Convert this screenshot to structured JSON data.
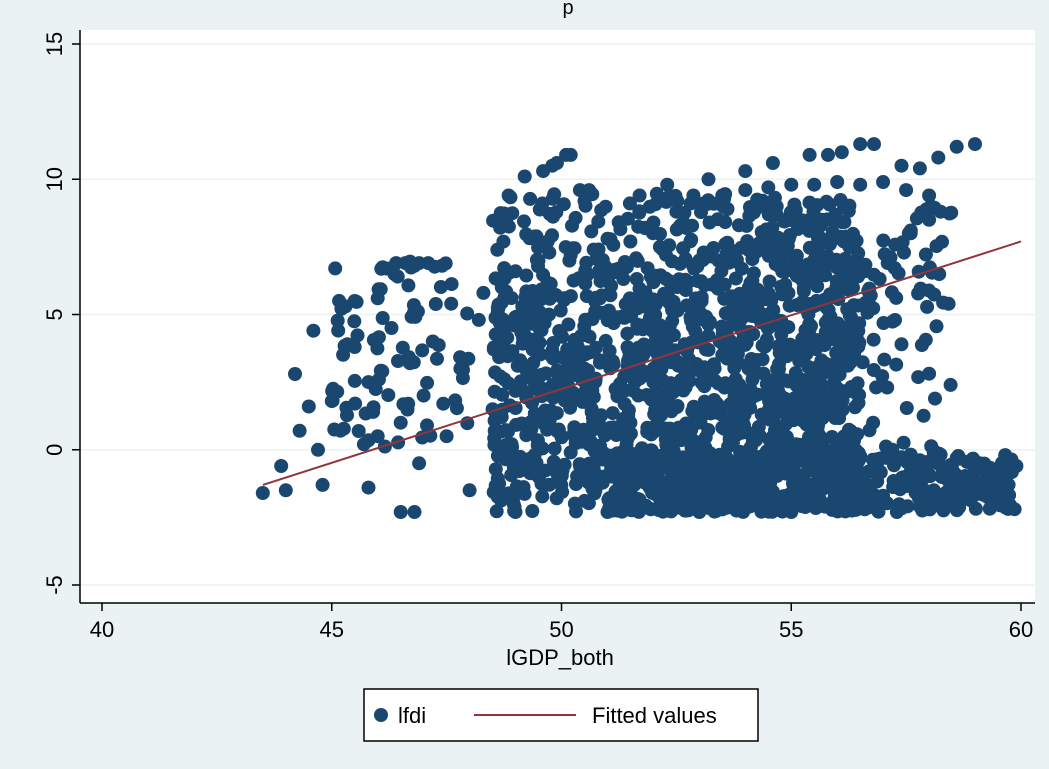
{
  "chart_data": {
    "type": "scatter",
    "title": "",
    "top_label": "p",
    "xlabel": "lGDP_both",
    "ylabel": "",
    "xlim": [
      40,
      60
    ],
    "ylim": [
      -5,
      15
    ],
    "x_ticks": [
      40,
      45,
      50,
      55,
      60
    ],
    "y_ticks": [
      -5,
      0,
      5,
      10,
      15
    ],
    "x_tick_labels": [
      "40",
      "45",
      "50",
      "55",
      "60"
    ],
    "y_tick_labels": [
      "-5",
      "0",
      "5",
      "10",
      "15"
    ],
    "grid": "horizontal",
    "legend_position": "bottom",
    "colors": {
      "points": "#1a476f",
      "fit": "#90353b",
      "plot_bg": "#ffffff",
      "outer_bg": "#eaf2f3",
      "grid": "#eaf2f3"
    },
    "series": [
      {
        "name": "lfdi",
        "kind": "scatter",
        "regions": [
          {
            "x": [
              48.5,
              56.5
            ],
            "y": [
              -2.3,
              9.5
            ],
            "density": "very dense"
          },
          {
            "x": [
              49.0,
              58.5
            ],
            "y": [
              -2.3,
              11.3
            ],
            "density": "upper band"
          },
          {
            "x": [
              51.0,
              59.9
            ],
            "y": [
              -2.3,
              -0.1
            ],
            "density": "lower band"
          },
          {
            "x": [
              45.0,
              48.0
            ],
            "y": [
              0.0,
              7.0
            ],
            "density": "sparse"
          }
        ],
        "points": [
          [
            43.5,
            -1.6
          ],
          [
            43.9,
            -0.6
          ],
          [
            44.0,
            -1.5
          ],
          [
            44.2,
            2.8
          ],
          [
            44.3,
            0.7
          ],
          [
            44.5,
            1.6
          ],
          [
            44.6,
            4.4
          ],
          [
            44.7,
            0.0
          ],
          [
            44.8,
            -1.3
          ],
          [
            45.0,
            1.8
          ],
          [
            45.3,
            5.3
          ],
          [
            45.5,
            3.8
          ],
          [
            45.5,
            5.5
          ],
          [
            45.7,
            0.2
          ],
          [
            45.8,
            -1.4
          ],
          [
            46.0,
            5.6
          ],
          [
            46.2,
            6.7
          ],
          [
            46.4,
            6.9
          ],
          [
            46.6,
            6.9
          ],
          [
            46.8,
            6.8
          ],
          [
            46.9,
            6.9
          ],
          [
            47.1,
            6.9
          ],
          [
            47.4,
            6.8
          ],
          [
            46.3,
            4.5
          ],
          [
            46.1,
            2.9
          ],
          [
            46.5,
            -2.3
          ],
          [
            46.8,
            -2.3
          ],
          [
            49.2,
            10.1
          ],
          [
            49.6,
            10.3
          ],
          [
            49.8,
            10.5
          ],
          [
            49.9,
            10.6
          ],
          [
            50.1,
            10.9
          ],
          [
            50.2,
            10.9
          ],
          [
            50.4,
            9.6
          ],
          [
            50.6,
            9.6
          ],
          [
            50.5,
            9.2
          ],
          [
            51.7,
            9.4
          ],
          [
            52.3,
            9.8
          ],
          [
            53.2,
            10.0
          ],
          [
            54.0,
            10.3
          ],
          [
            54.6,
            10.6
          ],
          [
            55.4,
            10.9
          ],
          [
            55.8,
            10.9
          ],
          [
            56.1,
            11.0
          ],
          [
            56.5,
            11.3
          ],
          [
            56.8,
            11.3
          ],
          [
            57.4,
            10.5
          ],
          [
            57.8,
            10.4
          ],
          [
            58.2,
            10.8
          ],
          [
            58.6,
            11.2
          ],
          [
            59.0,
            11.3
          ],
          [
            58.0,
            8.5
          ],
          [
            57.6,
            8.0
          ],
          [
            57.1,
            6.9
          ],
          [
            56.6,
            6.6
          ],
          [
            56.3,
            4.9
          ],
          [
            55.8,
            4.8
          ],
          [
            57.4,
            3.9
          ],
          [
            55.6,
            3.1
          ],
          [
            55.5,
            2.5
          ],
          [
            55.3,
            2.0
          ],
          [
            55.6,
            1.9
          ],
          [
            51.6,
            2.5
          ],
          [
            52.0,
            2.5
          ],
          [
            53.1,
            2.7
          ],
          [
            54.1,
            0.6
          ],
          [
            55.1,
            0.2
          ],
          [
            56.4,
            0.0
          ],
          [
            57.2,
            0.0
          ],
          [
            58.1,
            -0.1
          ],
          [
            58.6,
            -0.3
          ],
          [
            59.1,
            -0.5
          ],
          [
            59.6,
            -0.6
          ],
          [
            59.9,
            -0.6
          ],
          [
            59.1,
            -1.2
          ],
          [
            58.5,
            -1.6
          ],
          [
            57.9,
            -1.5
          ],
          [
            57.8,
            -2.1
          ],
          [
            57.3,
            -2.3
          ],
          [
            56.6,
            -2.2
          ],
          [
            57.0,
            -1.7
          ],
          [
            49.0,
            -2.3
          ],
          [
            51.0,
            -2.3
          ],
          [
            53.0,
            -2.3
          ],
          [
            55.0,
            -2.3
          ],
          [
            48.3,
            5.8
          ],
          [
            48.7,
            6.0
          ],
          [
            49.0,
            6.6
          ],
          [
            49.5,
            7.0
          ],
          [
            49.7,
            7.7
          ],
          [
            50.2,
            7.2
          ],
          [
            50.7,
            7.4
          ],
          [
            51.0,
            7.8
          ],
          [
            51.5,
            7.7
          ],
          [
            52.0,
            8.4
          ],
          [
            52.5,
            8.8
          ],
          [
            53.0,
            9.1
          ],
          [
            53.5,
            9.4
          ],
          [
            54.0,
            9.6
          ],
          [
            54.5,
            9.7
          ],
          [
            55.0,
            9.8
          ],
          [
            55.5,
            9.8
          ],
          [
            56.0,
            9.9
          ],
          [
            56.5,
            9.8
          ],
          [
            57.0,
            9.9
          ],
          [
            57.5,
            9.6
          ],
          [
            58.0,
            9.4
          ],
          [
            50.5,
            3.0
          ],
          [
            51.5,
            1.0
          ],
          [
            52.5,
            -0.5
          ],
          [
            53.5,
            3.5
          ],
          [
            54.5,
            5.0
          ],
          [
            52.0,
            5.5
          ],
          [
            53.0,
            7.0
          ],
          [
            50.0,
            0.5
          ],
          [
            49.5,
            -1.0
          ],
          [
            48.5,
            1.5
          ],
          [
            47.8,
            3.0
          ],
          [
            48.0,
            -1.5
          ],
          [
            47.5,
            0.5
          ],
          [
            47.0,
            2.0
          ],
          [
            46.5,
            1.0
          ],
          [
            46.0,
            0.5
          ],
          [
            45.8,
            2.5
          ],
          [
            47.2,
            4.0
          ],
          [
            47.6,
            5.4
          ],
          [
            48.2,
            4.8
          ],
          [
            46.7,
            3.2
          ],
          [
            46.9,
            -0.5
          ],
          [
            45.9,
            1.4
          ]
        ]
      },
      {
        "name": "Fitted values",
        "kind": "line",
        "x": [
          43.5,
          60.0
        ],
        "y": [
          -1.3,
          7.7
        ]
      }
    ]
  }
}
